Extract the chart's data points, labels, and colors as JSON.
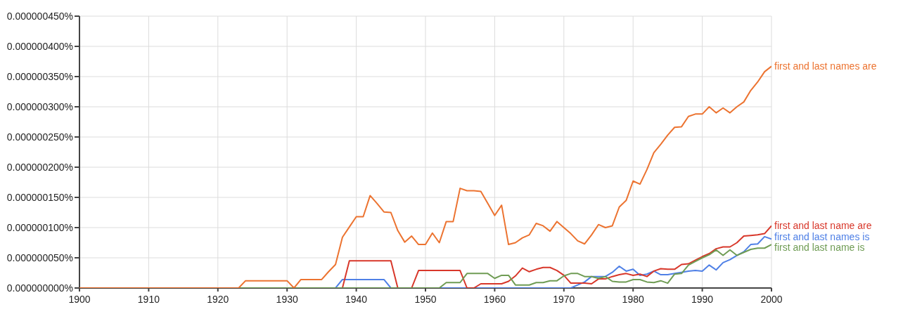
{
  "chart_data": {
    "type": "line",
    "x": [
      1900,
      1901,
      1902,
      1903,
      1904,
      1905,
      1906,
      1907,
      1908,
      1909,
      1910,
      1911,
      1912,
      1913,
      1914,
      1915,
      1916,
      1917,
      1918,
      1919,
      1920,
      1921,
      1922,
      1923,
      1924,
      1925,
      1926,
      1927,
      1928,
      1929,
      1930,
      1931,
      1932,
      1933,
      1934,
      1935,
      1936,
      1937,
      1938,
      1939,
      1940,
      1941,
      1942,
      1943,
      1944,
      1945,
      1946,
      1947,
      1948,
      1949,
      1950,
      1951,
      1952,
      1953,
      1954,
      1955,
      1956,
      1957,
      1958,
      1959,
      1960,
      1961,
      1962,
      1963,
      1964,
      1965,
      1966,
      1967,
      1968,
      1969,
      1970,
      1971,
      1972,
      1973,
      1974,
      1975,
      1976,
      1977,
      1978,
      1979,
      1980,
      1981,
      1982,
      1983,
      1984,
      1985,
      1986,
      1987,
      1988,
      1989,
      1990,
      1991,
      1992,
      1993,
      1994,
      1995,
      1996,
      1997,
      1998,
      1999,
      2000
    ],
    "series": [
      {
        "name": "first and last names is",
        "color": "#4f80e6",
        "values": [
          null,
          null,
          null,
          null,
          null,
          null,
          null,
          null,
          null,
          null,
          null,
          null,
          null,
          null,
          null,
          null,
          null,
          null,
          null,
          null,
          null,
          null,
          null,
          null,
          null,
          null,
          null,
          null,
          null,
          null,
          null,
          null,
          null,
          null,
          null,
          null,
          null,
          0,
          1.4e-08,
          1.4e-08,
          1.4e-08,
          1.4e-08,
          1.4e-08,
          1.4e-08,
          1.4e-08,
          0,
          null,
          null,
          null,
          null,
          null,
          null,
          0,
          0,
          0,
          0,
          0,
          0,
          0,
          0,
          0,
          0,
          0,
          0,
          0,
          0,
          0,
          0,
          0,
          0,
          0,
          0,
          5e-09,
          1e-08,
          1.9e-08,
          1.9e-08,
          1.9e-08,
          2.6e-08,
          3.6e-08,
          2.8e-08,
          3.1e-08,
          2.1e-08,
          2.3e-08,
          2.8e-08,
          2.2e-08,
          2.2e-08,
          2.4e-08,
          2.6e-08,
          2.8e-08,
          2.9e-08,
          2.8e-08,
          3.8e-08,
          3e-08,
          4.2e-08,
          4.7e-08,
          5.4e-08,
          6e-08,
          7.2e-08,
          7.3e-08,
          8.5e-08,
          8.1e-08
        ]
      },
      {
        "name": "first and last name are",
        "color": "#d8372a",
        "values": [
          null,
          null,
          null,
          null,
          null,
          null,
          null,
          null,
          null,
          null,
          null,
          null,
          null,
          null,
          null,
          null,
          null,
          null,
          null,
          null,
          null,
          null,
          null,
          null,
          null,
          null,
          null,
          null,
          null,
          null,
          null,
          null,
          null,
          null,
          null,
          null,
          null,
          null,
          0,
          4.5e-08,
          4.5e-08,
          4.5e-08,
          4.5e-08,
          4.5e-08,
          4.5e-08,
          4.5e-08,
          0,
          null,
          0,
          2.9e-08,
          2.9e-08,
          2.9e-08,
          2.9e-08,
          2.9e-08,
          2.9e-08,
          2.9e-08,
          0,
          0,
          7e-09,
          7e-09,
          7e-09,
          7e-09,
          1.1e-08,
          2e-08,
          3.3e-08,
          2.7e-08,
          3.1e-08,
          3.4e-08,
          3.4e-08,
          2.9e-08,
          2.1e-08,
          8e-09,
          8e-09,
          8e-09,
          7e-09,
          1.5e-08,
          1.5e-08,
          1.9e-08,
          2.2e-08,
          2.4e-08,
          2.1e-08,
          2.3e-08,
          1.9e-08,
          2.8e-08,
          3.2e-08,
          3.1e-08,
          3.1e-08,
          3.9e-08,
          4e-08,
          4.6e-08,
          5.2e-08,
          5.7e-08,
          6.5e-08,
          6.8e-08,
          6.8e-08,
          7.5e-08,
          8.6e-08,
          8.7e-08,
          8.8e-08,
          9e-08,
          1.03e-07
        ]
      },
      {
        "name": "first and last name is",
        "color": "#6f9c54",
        "values": [
          null,
          null,
          null,
          null,
          null,
          null,
          null,
          null,
          null,
          null,
          null,
          null,
          null,
          null,
          null,
          null,
          null,
          null,
          null,
          null,
          null,
          null,
          null,
          0,
          0,
          0,
          0,
          0,
          0,
          0,
          0,
          0,
          0,
          0,
          0,
          0,
          0,
          0,
          0,
          0,
          0,
          0,
          0,
          0,
          0,
          0,
          0,
          0,
          0,
          0,
          0,
          0,
          0,
          9e-09,
          9e-09,
          9e-09,
          2.4e-08,
          2.4e-08,
          2.4e-08,
          2.4e-08,
          1.6e-08,
          2.1e-08,
          2.1e-08,
          5e-09,
          5e-09,
          5e-09,
          9e-09,
          9e-09,
          1.2e-08,
          1.2e-08,
          2e-08,
          2.4e-08,
          2.4e-08,
          1.9e-08,
          1.9e-08,
          1.6e-08,
          1.9e-08,
          1.1e-08,
          1e-08,
          1e-08,
          1.4e-08,
          1.4e-08,
          1e-08,
          9e-09,
          1.2e-08,
          8e-09,
          2.3e-08,
          2.4e-08,
          3.8e-08,
          4.4e-08,
          5e-08,
          5.5e-08,
          6.3e-08,
          5.4e-08,
          6.3e-08,
          5.4e-08,
          5.9e-08,
          6.4e-08,
          6.6e-08,
          6.6e-08,
          7.2e-08
        ]
      },
      {
        "name": "first and last names are",
        "color": "#ec7330",
        "values": [
          0,
          0,
          0,
          0,
          0,
          0,
          0,
          0,
          0,
          0,
          0,
          0,
          0,
          0,
          0,
          0,
          0,
          0,
          0,
          0,
          0,
          0,
          0,
          0,
          1.2e-08,
          1.2e-08,
          1.2e-08,
          1.2e-08,
          1.2e-08,
          1.2e-08,
          1.2e-08,
          0,
          1.4e-08,
          1.4e-08,
          1.4e-08,
          1.4e-08,
          2.7e-08,
          3.9e-08,
          8.4e-08,
          1.01e-07,
          1.18e-07,
          1.18e-07,
          1.53e-07,
          1.4e-07,
          1.26e-07,
          1.25e-07,
          9.5e-08,
          7.6e-08,
          8.6e-08,
          7.2e-08,
          7.2e-08,
          9.1e-08,
          7.5e-08,
          1.1e-07,
          1.1e-07,
          1.65e-07,
          1.61e-07,
          1.61e-07,
          1.6e-07,
          1.4e-07,
          1.2e-07,
          1.37e-07,
          7.2e-08,
          7.5e-08,
          8.3e-08,
          8.8e-08,
          1.07e-07,
          1.03e-07,
          9.4e-08,
          1.1e-07,
          1e-07,
          9e-08,
          7.8e-08,
          7.3e-08,
          8.8e-08,
          1.05e-07,
          1e-07,
          1.03e-07,
          1.34e-07,
          1.45e-07,
          1.77e-07,
          1.72e-07,
          1.96e-07,
          2.24e-07,
          2.38e-07,
          2.53e-07,
          2.66e-07,
          2.67e-07,
          2.84e-07,
          2.88e-07,
          2.88e-07,
          3e-07,
          2.9e-07,
          2.98e-07,
          2.9e-07,
          3e-07,
          3.08e-07,
          3.27e-07,
          3.41e-07,
          3.58e-07,
          3.67e-07
        ]
      }
    ],
    "xlim": [
      1900,
      2000
    ],
    "xticks": [
      1900,
      1910,
      1920,
      1930,
      1940,
      1950,
      1960,
      1970,
      1980,
      1990,
      2000
    ],
    "ylim": [
      0,
      4.5e-07
    ],
    "yticks": [
      {
        "value": 0,
        "label": "0.000000000%"
      },
      {
        "value": 5e-08,
        "label": "0.000000050%"
      },
      {
        "value": 1e-07,
        "label": "0.000000100%"
      },
      {
        "value": 1.5e-07,
        "label": "0.000000150%"
      },
      {
        "value": 2e-07,
        "label": "0.000000200%"
      },
      {
        "value": 2.5e-07,
        "label": "0.000000250%"
      },
      {
        "value": 3e-07,
        "label": "0.000000300%"
      },
      {
        "value": 3.5e-07,
        "label": "0.000000350%"
      },
      {
        "value": 4e-07,
        "label": "0.000000400%"
      },
      {
        "value": 4.5e-07,
        "label": "0.000000450%"
      }
    ],
    "grid": true
  }
}
